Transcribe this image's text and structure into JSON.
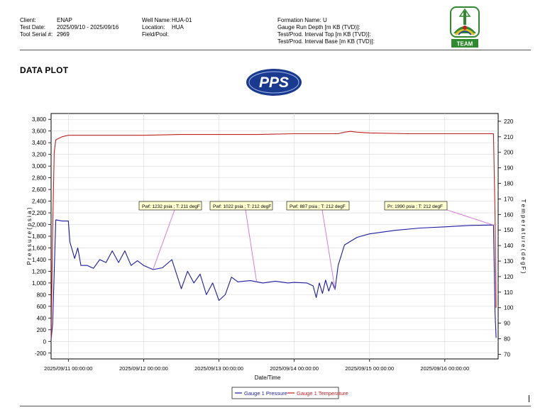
{
  "header": {
    "col1": [
      {
        "label": "Client:",
        "value": "ENAP"
      },
      {
        "label": "Test Date:",
        "value": "2025/09/10 - 2025/09/16"
      },
      {
        "label": "Tool Serial #:",
        "value": "2969"
      }
    ],
    "col2": [
      {
        "label": "Well Name:",
        "value": "HUA-01"
      },
      {
        "label": "Location:",
        "value": "HUA"
      },
      {
        "label": "Field/Pool:",
        "value": ""
      }
    ],
    "col3": [
      {
        "label": "Formation Name:",
        "value": "U"
      },
      {
        "label": "Gauge Run Depth [m KB (TVD)]:",
        "value": ""
      },
      {
        "label": "Test/Prod. Interval Top [m KB (TVD)]:",
        "value": ""
      },
      {
        "label": "Test/Prod. Interval Base [m KB (TVD)]:",
        "value": ""
      }
    ],
    "logo_text": "TEAM"
  },
  "page_title": "DATA PLOT",
  "pps_logo_text": "PPS",
  "colors": {
    "pressure": "#1a1aa0",
    "temperature": "#c02020",
    "callout_line": "#d070d0",
    "callout_bg": "#ffffd0"
  },
  "chart_data": {
    "type": "line",
    "xlabel": "Date/Time",
    "ylabel": "P r e s s u r e   ( p s i a )",
    "y2label": "T e m p e r a t u r e   ( d e g F )",
    "ylim": [
      -300,
      3900
    ],
    "y2lim": [
      67,
      225
    ],
    "y_ticks": [
      -200,
      0,
      200,
      400,
      600,
      800,
      1000,
      1200,
      1400,
      1600,
      1800,
      2000,
      2200,
      2400,
      2600,
      2800,
      3000,
      3200,
      3400,
      3600,
      3800
    ],
    "y_tick_labels": [
      "-200",
      "0",
      "200",
      "400",
      "600",
      "800",
      "1,000",
      "1,200",
      "1,400",
      "1,600",
      "1,800",
      "2,000",
      "2,200",
      "2,400",
      "2,600",
      "2,800",
      "3,000",
      "3,200",
      "3,400",
      "3,600",
      "3,800"
    ],
    "y2_ticks": [
      70,
      80,
      90,
      100,
      110,
      120,
      130,
      140,
      150,
      160,
      170,
      180,
      190,
      200,
      210,
      220
    ],
    "xlim": [
      "2025/09/10 18:30",
      "2025/09/16 17:00"
    ],
    "x_ticks": [
      "2025/09/11 00:00:00",
      "2025/09/12 00:00:00",
      "2025/09/13 00:00:00",
      "2025/09/14 00:00:00",
      "2025/09/15 00:00:00",
      "2025/09/16 00:00:00"
    ],
    "grid": true,
    "legend_position": "bottom",
    "series": [
      {
        "name": "Gauge 1 Pressure",
        "axis": "left",
        "points": [
          [
            "2025/09/10 18:30",
            30
          ],
          [
            "2025/09/10 19:00",
            300
          ],
          [
            "2025/09/10 20:00",
            2080
          ],
          [
            "2025/09/10 22:00",
            2060
          ],
          [
            "2025/09/11 00:00",
            2060
          ],
          [
            "2025/09/11 00:30",
            1700
          ],
          [
            "2025/09/11 02:00",
            1420
          ],
          [
            "2025/09/11 03:00",
            1600
          ],
          [
            "2025/09/11 04:00",
            1300
          ],
          [
            "2025/09/11 06:00",
            1300
          ],
          [
            "2025/09/11 08:00",
            1250
          ],
          [
            "2025/09/11 10:00",
            1400
          ],
          [
            "2025/09/11 12:00",
            1350
          ],
          [
            "2025/09/11 14:00",
            1550
          ],
          [
            "2025/09/11 16:00",
            1350
          ],
          [
            "2025/09/11 18:00",
            1550
          ],
          [
            "2025/09/11 20:00",
            1300
          ],
          [
            "2025/09/11 22:00",
            1380
          ],
          [
            "2025/09/12 00:00",
            1300
          ],
          [
            "2025/09/12 03:00",
            1230
          ],
          [
            "2025/09/12 06:00",
            1260
          ],
          [
            "2025/09/12 09:00",
            1400
          ],
          [
            "2025/09/12 12:00",
            900
          ],
          [
            "2025/09/12 14:00",
            1200
          ],
          [
            "2025/09/12 16:00",
            1000
          ],
          [
            "2025/09/12 18:00",
            1150
          ],
          [
            "2025/09/12 20:00",
            800
          ],
          [
            "2025/09/12 22:00",
            1000
          ],
          [
            "2025/09/13 00:00",
            700
          ],
          [
            "2025/09/13 02:00",
            800
          ],
          [
            "2025/09/13 04:00",
            1100
          ],
          [
            "2025/09/13 06:00",
            1020
          ],
          [
            "2025/09/13 10:00",
            1040
          ],
          [
            "2025/09/13 14:00",
            1000
          ],
          [
            "2025/09/13 18:00",
            1030
          ],
          [
            "2025/09/13 22:00",
            1000
          ],
          [
            "2025/09/14 00:00",
            1010
          ],
          [
            "2025/09/14 04:00",
            1000
          ],
          [
            "2025/09/14 06:00",
            950
          ],
          [
            "2025/09/14 07:00",
            750
          ],
          [
            "2025/09/14 08:00",
            1000
          ],
          [
            "2025/09/14 09:00",
            820
          ],
          [
            "2025/09/14 10:00",
            1050
          ],
          [
            "2025/09/14 11:00",
            860
          ],
          [
            "2025/09/14 12:00",
            1020
          ],
          [
            "2025/09/14 13:00",
            887
          ],
          [
            "2025/09/14 14:00",
            1300
          ],
          [
            "2025/09/14 16:00",
            1650
          ],
          [
            "2025/09/14 20:00",
            1780
          ],
          [
            "2025/09/15 00:00",
            1840
          ],
          [
            "2025/09/15 08:00",
            1900
          ],
          [
            "2025/09/15 16:00",
            1940
          ],
          [
            "2025/09/16 00:00",
            1960
          ],
          [
            "2025/09/16 08:00",
            1985
          ],
          [
            "2025/09/16 14:00",
            1990
          ],
          [
            "2025/09/16 15:30",
            1990
          ],
          [
            "2025/09/16 16:00",
            500
          ],
          [
            "2025/09/16 16:20",
            60
          ]
        ]
      },
      {
        "name": "Gauge 1 Temperature",
        "axis": "right",
        "points": [
          [
            "2025/09/10 18:30",
            80
          ],
          [
            "2025/09/10 19:00",
            150
          ],
          [
            "2025/09/10 19:30",
            200
          ],
          [
            "2025/09/10 20:00",
            208
          ],
          [
            "2025/09/10 22:00",
            210
          ],
          [
            "2025/09/11 00:00",
            211
          ],
          [
            "2025/09/11 12:00",
            211
          ],
          [
            "2025/09/12 00:00",
            211
          ],
          [
            "2025/09/12 12:00",
            211.5
          ],
          [
            "2025/09/13 00:00",
            211.5
          ],
          [
            "2025/09/13 12:00",
            211.5
          ],
          [
            "2025/09/14 00:00",
            212
          ],
          [
            "2025/09/14 12:00",
            212
          ],
          [
            "2025/09/14 14:00",
            212
          ],
          [
            "2025/09/14 16:00",
            213
          ],
          [
            "2025/09/14 18:00",
            213.5
          ],
          [
            "2025/09/14 20:00",
            213
          ],
          [
            "2025/09/15 00:00",
            212.5
          ],
          [
            "2025/09/15 12:00",
            212
          ],
          [
            "2025/09/16 00:00",
            212
          ],
          [
            "2025/09/16 12:00",
            212
          ],
          [
            "2025/09/16 15:30",
            212
          ],
          [
            "2025/09/16 16:00",
            160
          ],
          [
            "2025/09/16 16:20",
            100
          ]
        ]
      }
    ],
    "annotations": [
      {
        "text": "Pwf: 1232 psia ; T: 211 degF",
        "at": "2025/09/12 03:00",
        "value": 1232
      },
      {
        "text": "Pwf: 1022 psia ; T: 212 degF",
        "at": "2025/09/13 12:00",
        "value": 1022
      },
      {
        "text": "Pwf: 887 psia ; T: 212 degF",
        "at": "2025/09/14 13:00",
        "value": 887
      },
      {
        "text": "Pr: 1990 psia ; T: 212 degF",
        "at": "2025/09/16 15:30",
        "value": 1990
      }
    ]
  }
}
